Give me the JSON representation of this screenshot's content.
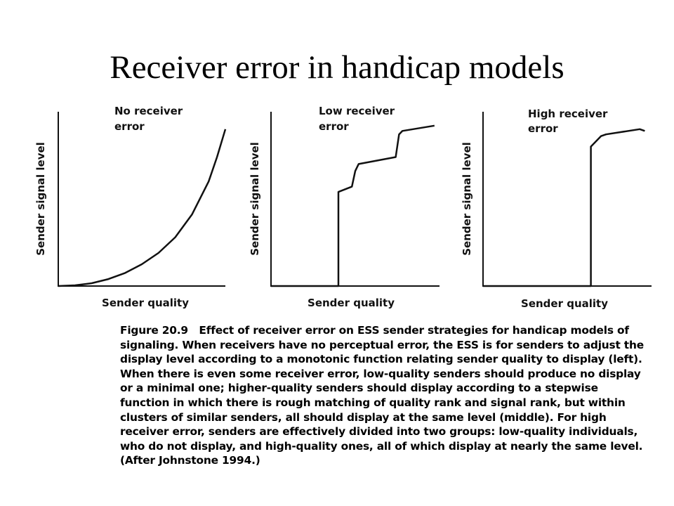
{
  "slide": {
    "title": "Receiver error in handicap models"
  },
  "chart_data": [
    {
      "type": "line",
      "panel_label": [
        "No receiver",
        "error"
      ],
      "xlabel": "Sender quality",
      "ylabel": "Sender signal level",
      "xlim": [
        0,
        1
      ],
      "ylim": [
        0,
        1
      ],
      "series": [
        {
          "x": [
            0,
            0.1,
            0.2,
            0.3,
            0.4,
            0.5,
            0.6,
            0.7,
            0.8,
            0.9,
            0.95,
            1.0
          ],
          "values": [
            0,
            0.004,
            0.016,
            0.04,
            0.075,
            0.125,
            0.19,
            0.28,
            0.41,
            0.6,
            0.74,
            0.9
          ]
        }
      ]
    },
    {
      "type": "line",
      "panel_label": [
        "Low receiver",
        "error"
      ],
      "xlabel": "Sender quality",
      "ylabel": "Sender signal level",
      "xlim": [
        0,
        1
      ],
      "ylim": [
        0,
        1
      ],
      "series": [
        {
          "x": [
            0,
            0.4,
            0.4,
            0.48,
            0.5,
            0.52,
            0.74,
            0.76,
            0.78,
            0.97
          ],
          "values": [
            0,
            0,
            0.54,
            0.57,
            0.66,
            0.7,
            0.74,
            0.87,
            0.89,
            0.92
          ]
        }
      ]
    },
    {
      "type": "line",
      "panel_label": [
        "High receiver",
        "error"
      ],
      "xlabel": "Sender quality",
      "ylabel": "Sender signal level",
      "xlim": [
        0,
        1
      ],
      "ylim": [
        0,
        1
      ],
      "series": [
        {
          "x": [
            0,
            0.64,
            0.64,
            0.7,
            0.73,
            0.93,
            0.96
          ],
          "values": [
            0,
            0,
            0.8,
            0.86,
            0.87,
            0.9,
            0.89
          ]
        }
      ]
    }
  ],
  "caption": {
    "figure_label": "Figure 20.9",
    "heading": "Effect of receiver error on ESS sender strategies for handicap models of signaling.",
    "body": "When receivers have no perceptual error, the ESS is for senders to adjust the display level according to a monotonic function relating sender quality to display (left). When there is even some receiver error, low-quality senders should produce no display or a minimal one; higher-quality senders should display according to a stepwise function in which there is rough matching of quality rank and signal rank, but within clusters of similar senders, all should display at the same level (middle). For high receiver error, senders are effectively divided into two groups: low-quality individuals, who do not display, and high-quality ones, all of which display at nearly the same level. (After Johnstone 1994.)"
  }
}
